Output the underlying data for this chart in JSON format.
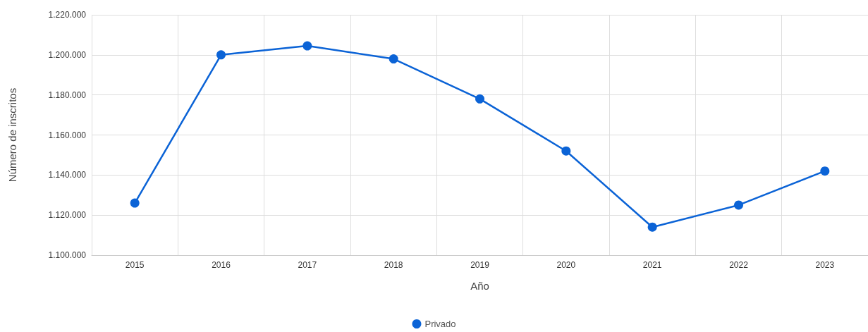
{
  "chart_data": {
    "type": "line",
    "xlabel": "Año",
    "ylabel": "Número de inscritos",
    "categories": [
      "2015",
      "2016",
      "2017",
      "2018",
      "2019",
      "2020",
      "2021",
      "2022",
      "2023"
    ],
    "series": [
      {
        "name": "Privado",
        "color": "#0b63d6",
        "values": [
          1126000,
          1200000,
          1204500,
          1198000,
          1178000,
          1152000,
          1114000,
          1125000,
          1142000
        ]
      }
    ],
    "ylim": [
      1100000,
      1220000
    ],
    "yticks": [
      {
        "value": 1100000,
        "label": "1.100.000"
      },
      {
        "value": 1120000,
        "label": "1.120.000"
      },
      {
        "value": 1140000,
        "label": "1.140.000"
      },
      {
        "value": 1160000,
        "label": "1.160.000"
      },
      {
        "value": 1180000,
        "label": "1.180.000"
      },
      {
        "value": 1200000,
        "label": "1.200.000"
      },
      {
        "value": 1220000,
        "label": "1.220.000"
      }
    ],
    "grid": true,
    "legend": "bottom",
    "marker": "circle",
    "line_style": "solid"
  }
}
